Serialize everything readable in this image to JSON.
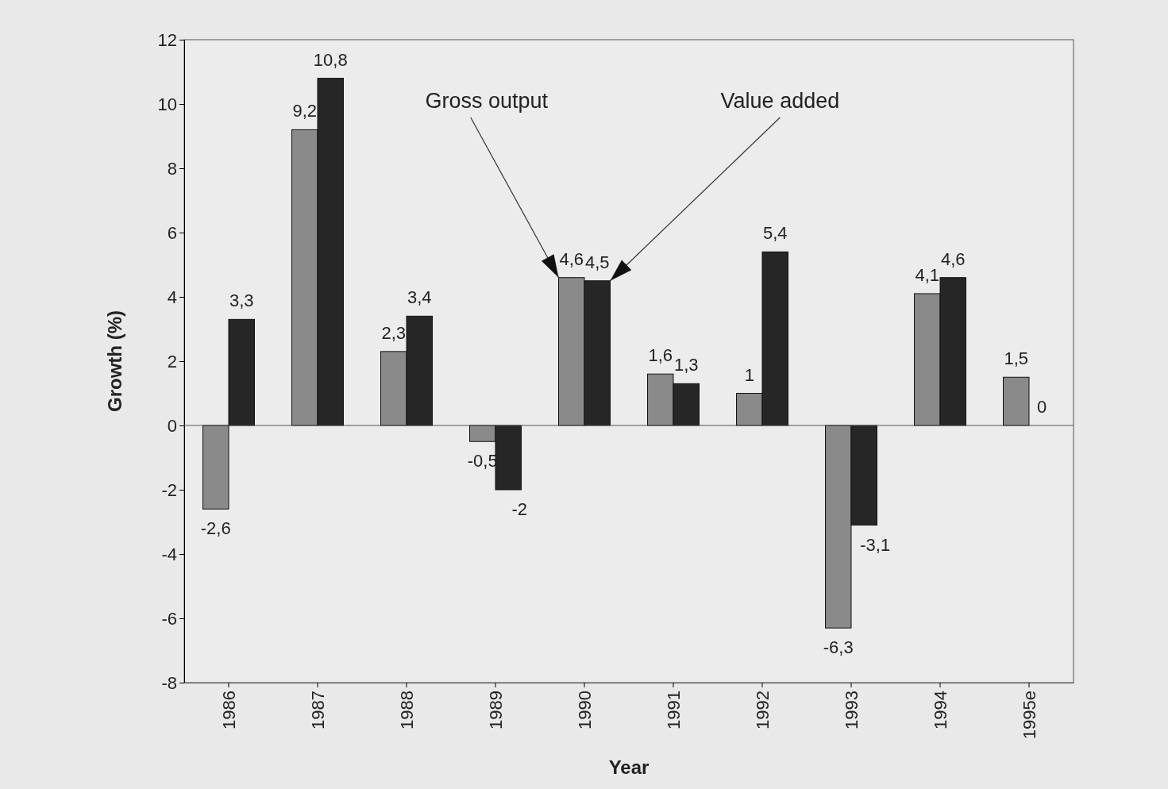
{
  "chart_data": {
    "type": "bar",
    "xlabel": "Year",
    "ylabel": "Growth (%)",
    "categories": [
      "1986",
      "1987",
      "1988",
      "1989",
      "1990",
      "1991",
      "1992",
      "1993",
      "1994",
      "1995e"
    ],
    "series": [
      {
        "name": "Gross output",
        "color": "#8a8a8a",
        "values": [
          -2.6,
          9.2,
          2.3,
          -0.5,
          4.6,
          1.6,
          1,
          -6.3,
          4.1,
          1.5
        ],
        "value_labels": [
          "-2,6",
          "9,2",
          "2,3",
          "-0,5",
          "4,6",
          "1,6",
          "1",
          "-6,3",
          "4,1",
          "1,5"
        ]
      },
      {
        "name": "Value added",
        "color": "#262626",
        "values": [
          3.3,
          10.8,
          3.4,
          -2,
          4.5,
          1.3,
          5.4,
          -3.1,
          4.6,
          0
        ],
        "value_labels": [
          "3,3",
          "10,8",
          "3,4",
          "-2",
          "4,5",
          "1,3",
          "5,4",
          "-3,1",
          "4,6",
          "0"
        ]
      }
    ],
    "ylim": [
      -8,
      12
    ],
    "yticks": [
      -8,
      -6,
      -4,
      -2,
      0,
      2,
      4,
      6,
      8,
      10,
      12
    ]
  }
}
